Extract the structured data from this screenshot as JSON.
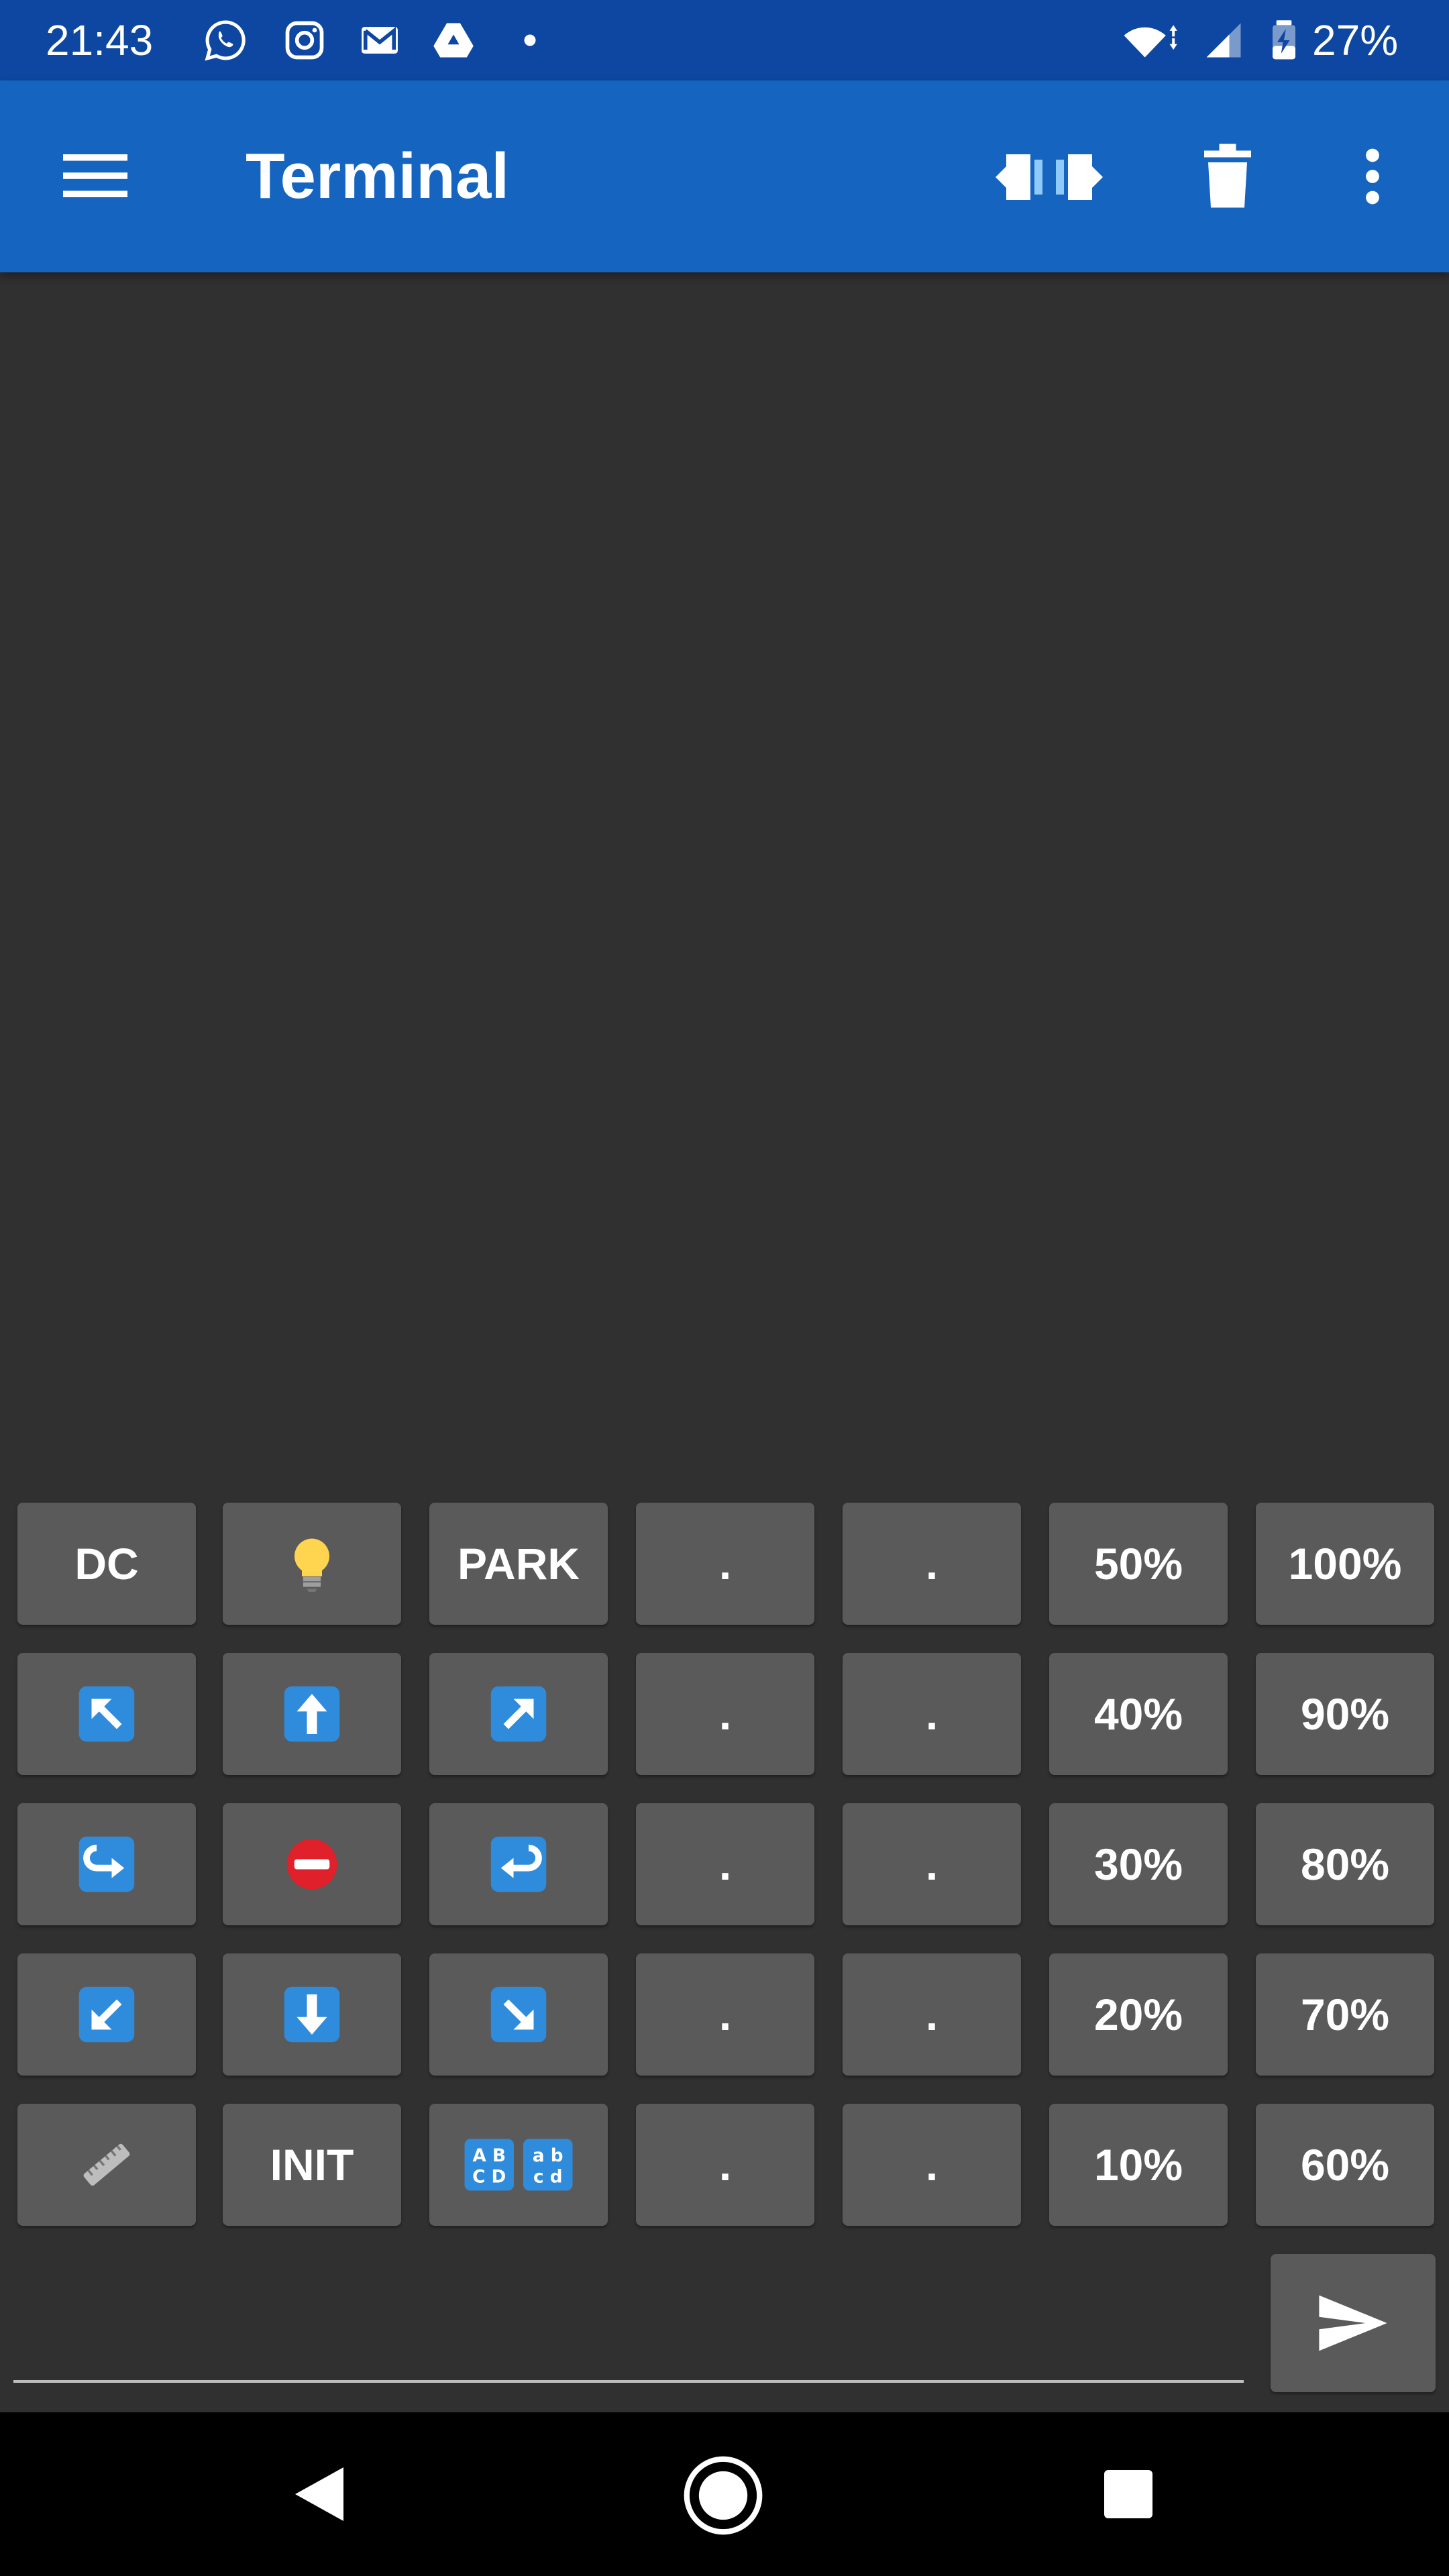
{
  "status_bar": {
    "time": "21:43",
    "battery_percent": "27%",
    "notification_icons": [
      "whatsapp-icon",
      "instagram-icon",
      "gmail-icon",
      "google-drive-icon",
      "dot-icon"
    ],
    "system_icons": [
      "wifi-icon",
      "cell-signal-icon",
      "battery-charging-icon"
    ]
  },
  "app_bar": {
    "title": "Terminal",
    "icons": [
      "menu-icon",
      "connect-icon",
      "delete-icon",
      "more-vert-icon"
    ]
  },
  "macro_grid": {
    "rows": [
      [
        {
          "label": "DC"
        },
        {
          "icon": "light-bulb-icon"
        },
        {
          "label": "PARK"
        },
        {
          "label": "."
        },
        {
          "label": "."
        },
        {
          "label": "50%"
        },
        {
          "label": "100%"
        }
      ],
      [
        {
          "icon": "arrow-up-left-icon"
        },
        {
          "icon": "arrow-up-icon"
        },
        {
          "icon": "arrow-up-right-icon"
        },
        {
          "label": "."
        },
        {
          "label": "."
        },
        {
          "label": "40%"
        },
        {
          "label": "90%"
        }
      ],
      [
        {
          "icon": "arrow-curve-right-icon"
        },
        {
          "icon": "no-entry-icon"
        },
        {
          "icon": "arrow-curve-left-icon"
        },
        {
          "label": "."
        },
        {
          "label": "."
        },
        {
          "label": "30%"
        },
        {
          "label": "80%"
        }
      ],
      [
        {
          "icon": "arrow-down-left-icon"
        },
        {
          "icon": "arrow-down-icon"
        },
        {
          "icon": "arrow-down-right-icon"
        },
        {
          "label": "."
        },
        {
          "label": "."
        },
        {
          "label": "20%"
        },
        {
          "label": "70%"
        }
      ],
      [
        {
          "icon": "ruler-icon"
        },
        {
          "label": "INIT"
        },
        {
          "icon": "abcd-icon",
          "text_upper": "AB CD",
          "text_lower": "ab cd"
        },
        {
          "label": "."
        },
        {
          "label": "."
        },
        {
          "label": "10%"
        },
        {
          "label": "60%"
        }
      ]
    ]
  },
  "input": {
    "value": "",
    "placeholder": ""
  },
  "nav_bar": {
    "icons": [
      "nav-back-icon",
      "nav-home-icon",
      "nav-recents-icon"
    ]
  },
  "colors": {
    "status_bar": "#0D47A1",
    "app_bar": "#1565C0",
    "background": "#303030",
    "button": "#5a5a5a",
    "emoji_blue": "#2F8BDB",
    "no_entry_red": "#E0202A"
  }
}
